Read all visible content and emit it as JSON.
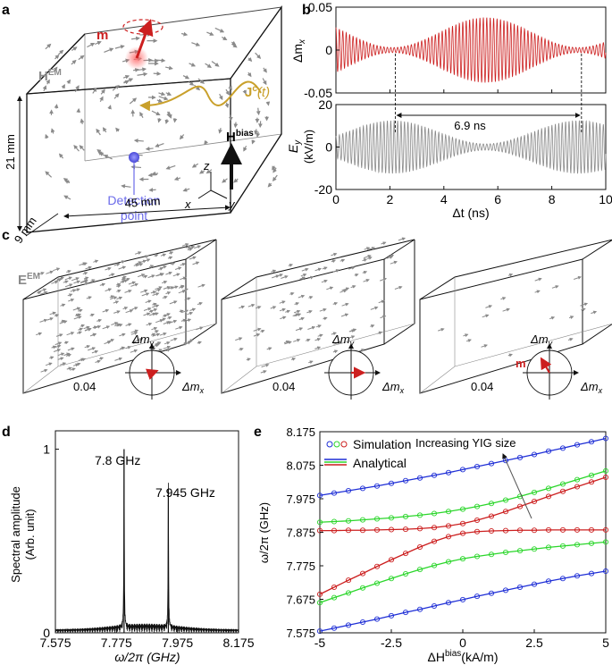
{
  "panel_labels": {
    "a": "a",
    "b": "b",
    "c": "c",
    "d": "d",
    "e": "e"
  },
  "colors": {
    "red": "#cc1f1f",
    "gray": "#8a8a8a",
    "blue": "#1f2fd6",
    "green": "#2bd62b",
    "gold": "#c9a02b",
    "detect": "#6b6bea",
    "black": "#111111"
  },
  "panel_a": {
    "m_label": "m",
    "h_em_label": "H",
    "h_em_sup": "EM",
    "j_label": "J",
    "j_sup": "c",
    "j_arg": "(t)",
    "hbias_label": "H",
    "hbias_sup": "bias",
    "dim_height": "21 mm",
    "dim_length": "45 mm",
    "dim_depth": "9 mm",
    "detection_line1": "Detection",
    "detection_line2": "point",
    "axis_x": "x",
    "axis_y": "y",
    "axis_z": "z"
  },
  "panel_c": {
    "e_em_label": "E",
    "e_em_sup": "EM",
    "polar_value": "0.04",
    "polar_y_label": "Δm",
    "polar_y_sub": "y",
    "polar_x_label": "Δm",
    "polar_x_sub": "x",
    "m_label": "m"
  },
  "chart_data": [
    {
      "id": "b-top",
      "type": "line",
      "title": "",
      "xlabel": "",
      "ylabel": "Δm",
      "ylabel_sub": "x",
      "xlim": [
        0,
        10
      ],
      "ylim": [
        -0.05,
        0.05
      ],
      "yticks": [
        "0.05",
        "0",
        "-0.05"
      ],
      "ytick_values": [
        0.05,
        0,
        -0.05
      ],
      "series": [
        {
          "name": "Δm_x",
          "carrier_ghz": 7.87,
          "envelope_max": 0.038,
          "envelope_min": 0.003,
          "beat_period_ns": 6.9,
          "first_min_ns": 2.1
        }
      ]
    },
    {
      "id": "b-bottom",
      "type": "line",
      "xlabel": "Δt (ns)",
      "ylabel": "E",
      "ylabel_sub": "y",
      "ylabel_unit": "(kV/m)",
      "xlim": [
        0,
        10
      ],
      "ylim": [
        -20,
        20
      ],
      "xticks": [
        "0",
        "2",
        "4",
        "6",
        "8",
        "10"
      ],
      "xtick_values": [
        0,
        2,
        4,
        6,
        8,
        10
      ],
      "yticks": [
        "20",
        "0",
        "-20"
      ],
      "ytick_values": [
        20,
        0,
        -20
      ],
      "series": [
        {
          "name": "E_y",
          "carrier_ghz": 7.87,
          "envelope_max": 12.5,
          "envelope_min": 1.5,
          "beat_period_ns": 6.9,
          "first_max_ns": 2.1
        }
      ],
      "annotation": "6.9 ns",
      "annotation_range": [
        2.2,
        9.1
      ]
    },
    {
      "id": "d",
      "type": "line",
      "xlabel": "ω/2π (GHz)",
      "ylabel_line1": "Spectral amplitude",
      "ylabel_line2": "(Arb. unit)",
      "xlim": [
        7.575,
        8.175
      ],
      "ylim": [
        0,
        1.1
      ],
      "xticks": [
        "7.575",
        "7.775",
        "7.975",
        "8.175"
      ],
      "xtick_values": [
        7.575,
        7.775,
        7.975,
        8.175
      ],
      "yticks": [
        "0",
        "1"
      ],
      "ytick_values": [
        0,
        1
      ],
      "peaks": [
        {
          "freq": 7.8,
          "amp": 1.0,
          "label": "7.8 GHz"
        },
        {
          "freq": 7.945,
          "amp": 0.78,
          "label": "7.945 GHz"
        }
      ]
    },
    {
      "id": "e",
      "type": "scatter",
      "xlabel": "ΔH",
      "xlabel_sup": "bias",
      "xlabel_unit": "(kA/m)",
      "ylabel": "ω/2π (GHz)",
      "xlim": [
        -5,
        5
      ],
      "ylim": [
        7.575,
        8.175
      ],
      "xticks": [
        "-5",
        "-2.5",
        "0",
        "2.5",
        "5"
      ],
      "xtick_values": [
        -5,
        -2.5,
        0,
        2.5,
        5
      ],
      "yticks": [
        "8.175",
        "8.075",
        "7.975",
        "7.875",
        "7.775",
        "7.675",
        "7.575"
      ],
      "ytick_values": [
        8.175,
        8.075,
        7.975,
        7.875,
        7.775,
        7.675,
        7.575
      ],
      "legend": {
        "simulation": "Simulation",
        "analytical": "Analytical"
      },
      "annotation": "Increasing YIG size",
      "x": [
        -5,
        -4.5,
        -4,
        -3.5,
        -3,
        -2.5,
        -2,
        -1.5,
        -1,
        -0.5,
        0,
        0.5,
        1,
        1.5,
        2,
        2.5,
        3,
        3.5,
        4,
        4.5,
        5
      ],
      "series": [
        {
          "name": "blue-upper",
          "color": "blue",
          "values": [
            7.985,
            7.992,
            7.999,
            8.006,
            8.013,
            8.021,
            8.029,
            8.037,
            8.045,
            8.053,
            8.062,
            8.071,
            8.08,
            8.089,
            8.098,
            8.107,
            8.117,
            8.126,
            8.136,
            8.145,
            8.155
          ]
        },
        {
          "name": "green-upper",
          "color": "green",
          "values": [
            7.905,
            7.907,
            7.909,
            7.912,
            7.915,
            7.918,
            7.922,
            7.926,
            7.931,
            7.937,
            7.944,
            7.952,
            7.961,
            7.971,
            7.982,
            7.994,
            8.006,
            8.019,
            8.032,
            8.045,
            8.058
          ]
        },
        {
          "name": "red-upper",
          "color": "red",
          "values": [
            7.88,
            7.88,
            7.881,
            7.881,
            7.882,
            7.883,
            7.884,
            7.886,
            7.889,
            7.894,
            7.901,
            7.911,
            7.923,
            7.937,
            7.952,
            7.967,
            7.982,
            7.997,
            8.011,
            8.025,
            8.039
          ]
        },
        {
          "name": "red-lower",
          "color": "red",
          "values": [
            7.69,
            7.711,
            7.732,
            7.752,
            7.773,
            7.793,
            7.812,
            7.831,
            7.848,
            7.862,
            7.872,
            7.877,
            7.879,
            7.88,
            7.881,
            7.881,
            7.882,
            7.882,
            7.882,
            7.882,
            7.882
          ]
        },
        {
          "name": "green-lower",
          "color": "green",
          "values": [
            7.665,
            7.68,
            7.694,
            7.709,
            7.723,
            7.737,
            7.751,
            7.764,
            7.776,
            7.787,
            7.796,
            7.803,
            7.809,
            7.815,
            7.82,
            7.825,
            7.83,
            7.834,
            7.838,
            7.842,
            7.846
          ]
        },
        {
          "name": "blue-lower",
          "color": "blue",
          "values": [
            7.58,
            7.589,
            7.598,
            7.607,
            7.616,
            7.626,
            7.636,
            7.645,
            7.655,
            7.665,
            7.674,
            7.684,
            7.693,
            7.702,
            7.711,
            7.72,
            7.729,
            7.737,
            7.745,
            7.752,
            7.759
          ]
        }
      ]
    }
  ]
}
